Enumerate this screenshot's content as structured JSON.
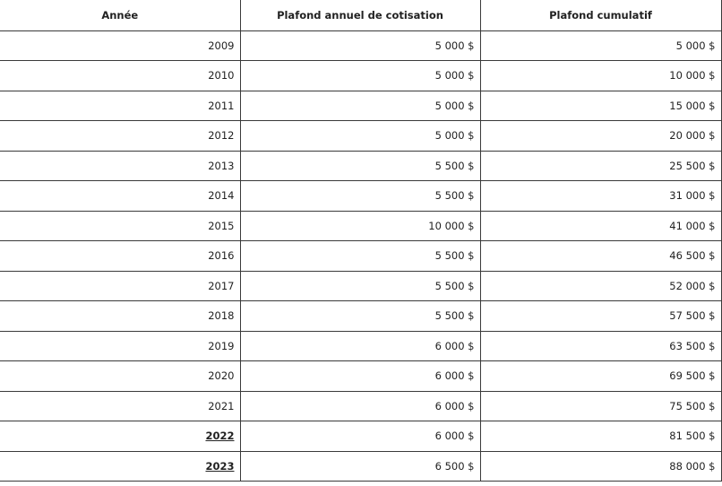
{
  "table": {
    "headers": [
      "Année",
      "Plafond annuel de cotisation",
      "Plafond cumulatif"
    ],
    "rows": [
      {
        "year": "2009",
        "annual": "5 000 $",
        "cumulative": "5 000 $",
        "emphasis": false
      },
      {
        "year": "2010",
        "annual": "5 000 $",
        "cumulative": "10 000 $",
        "emphasis": false
      },
      {
        "year": "2011",
        "annual": "5 000 $",
        "cumulative": "15 000 $",
        "emphasis": false
      },
      {
        "year": "2012",
        "annual": "5 000 $",
        "cumulative": "20 000 $",
        "emphasis": false
      },
      {
        "year": "2013",
        "annual": "5 500 $",
        "cumulative": "25 500 $",
        "emphasis": false
      },
      {
        "year": "2014",
        "annual": "5 500 $",
        "cumulative": "31 000 $",
        "emphasis": false
      },
      {
        "year": "2015",
        "annual": "10 000 $",
        "cumulative": "41 000 $",
        "emphasis": false
      },
      {
        "year": "2016",
        "annual": "5 500 $",
        "cumulative": "46 500 $",
        "emphasis": false
      },
      {
        "year": "2017",
        "annual": "5 500 $",
        "cumulative": "52 000 $",
        "emphasis": false
      },
      {
        "year": "2018",
        "annual": "5 500 $",
        "cumulative": "57 500 $",
        "emphasis": false
      },
      {
        "year": "2019",
        "annual": "6 000 $",
        "cumulative": "63 500 $",
        "emphasis": false
      },
      {
        "year": "2020",
        "annual": "6 000 $",
        "cumulative": "69 500 $",
        "emphasis": false
      },
      {
        "year": "2021",
        "annual": "6 000 $",
        "cumulative": "75 500 $",
        "emphasis": false
      },
      {
        "year": "2022",
        "annual": "6 000 $",
        "cumulative": "81 500 $",
        "emphasis": true
      },
      {
        "year": "2023",
        "annual": "6 500 $",
        "cumulative": "88 000 $",
        "emphasis": true
      }
    ]
  }
}
